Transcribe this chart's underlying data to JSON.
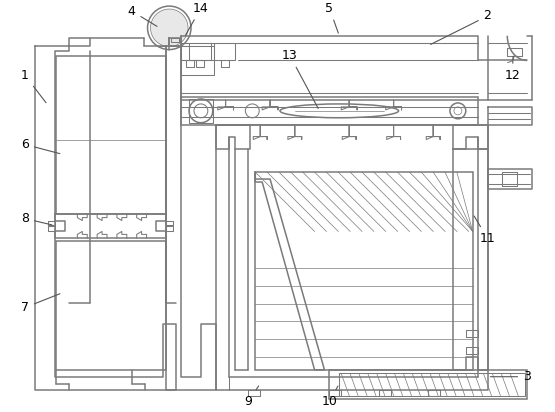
{
  "background_color": "#ffffff",
  "line_color": "#7a7a7a",
  "line_color2": "#555555",
  "fig_width": 5.55,
  "fig_height": 4.12,
  "dpi": 100,
  "label_fontsize": 9,
  "arrow_color": "#555555"
}
